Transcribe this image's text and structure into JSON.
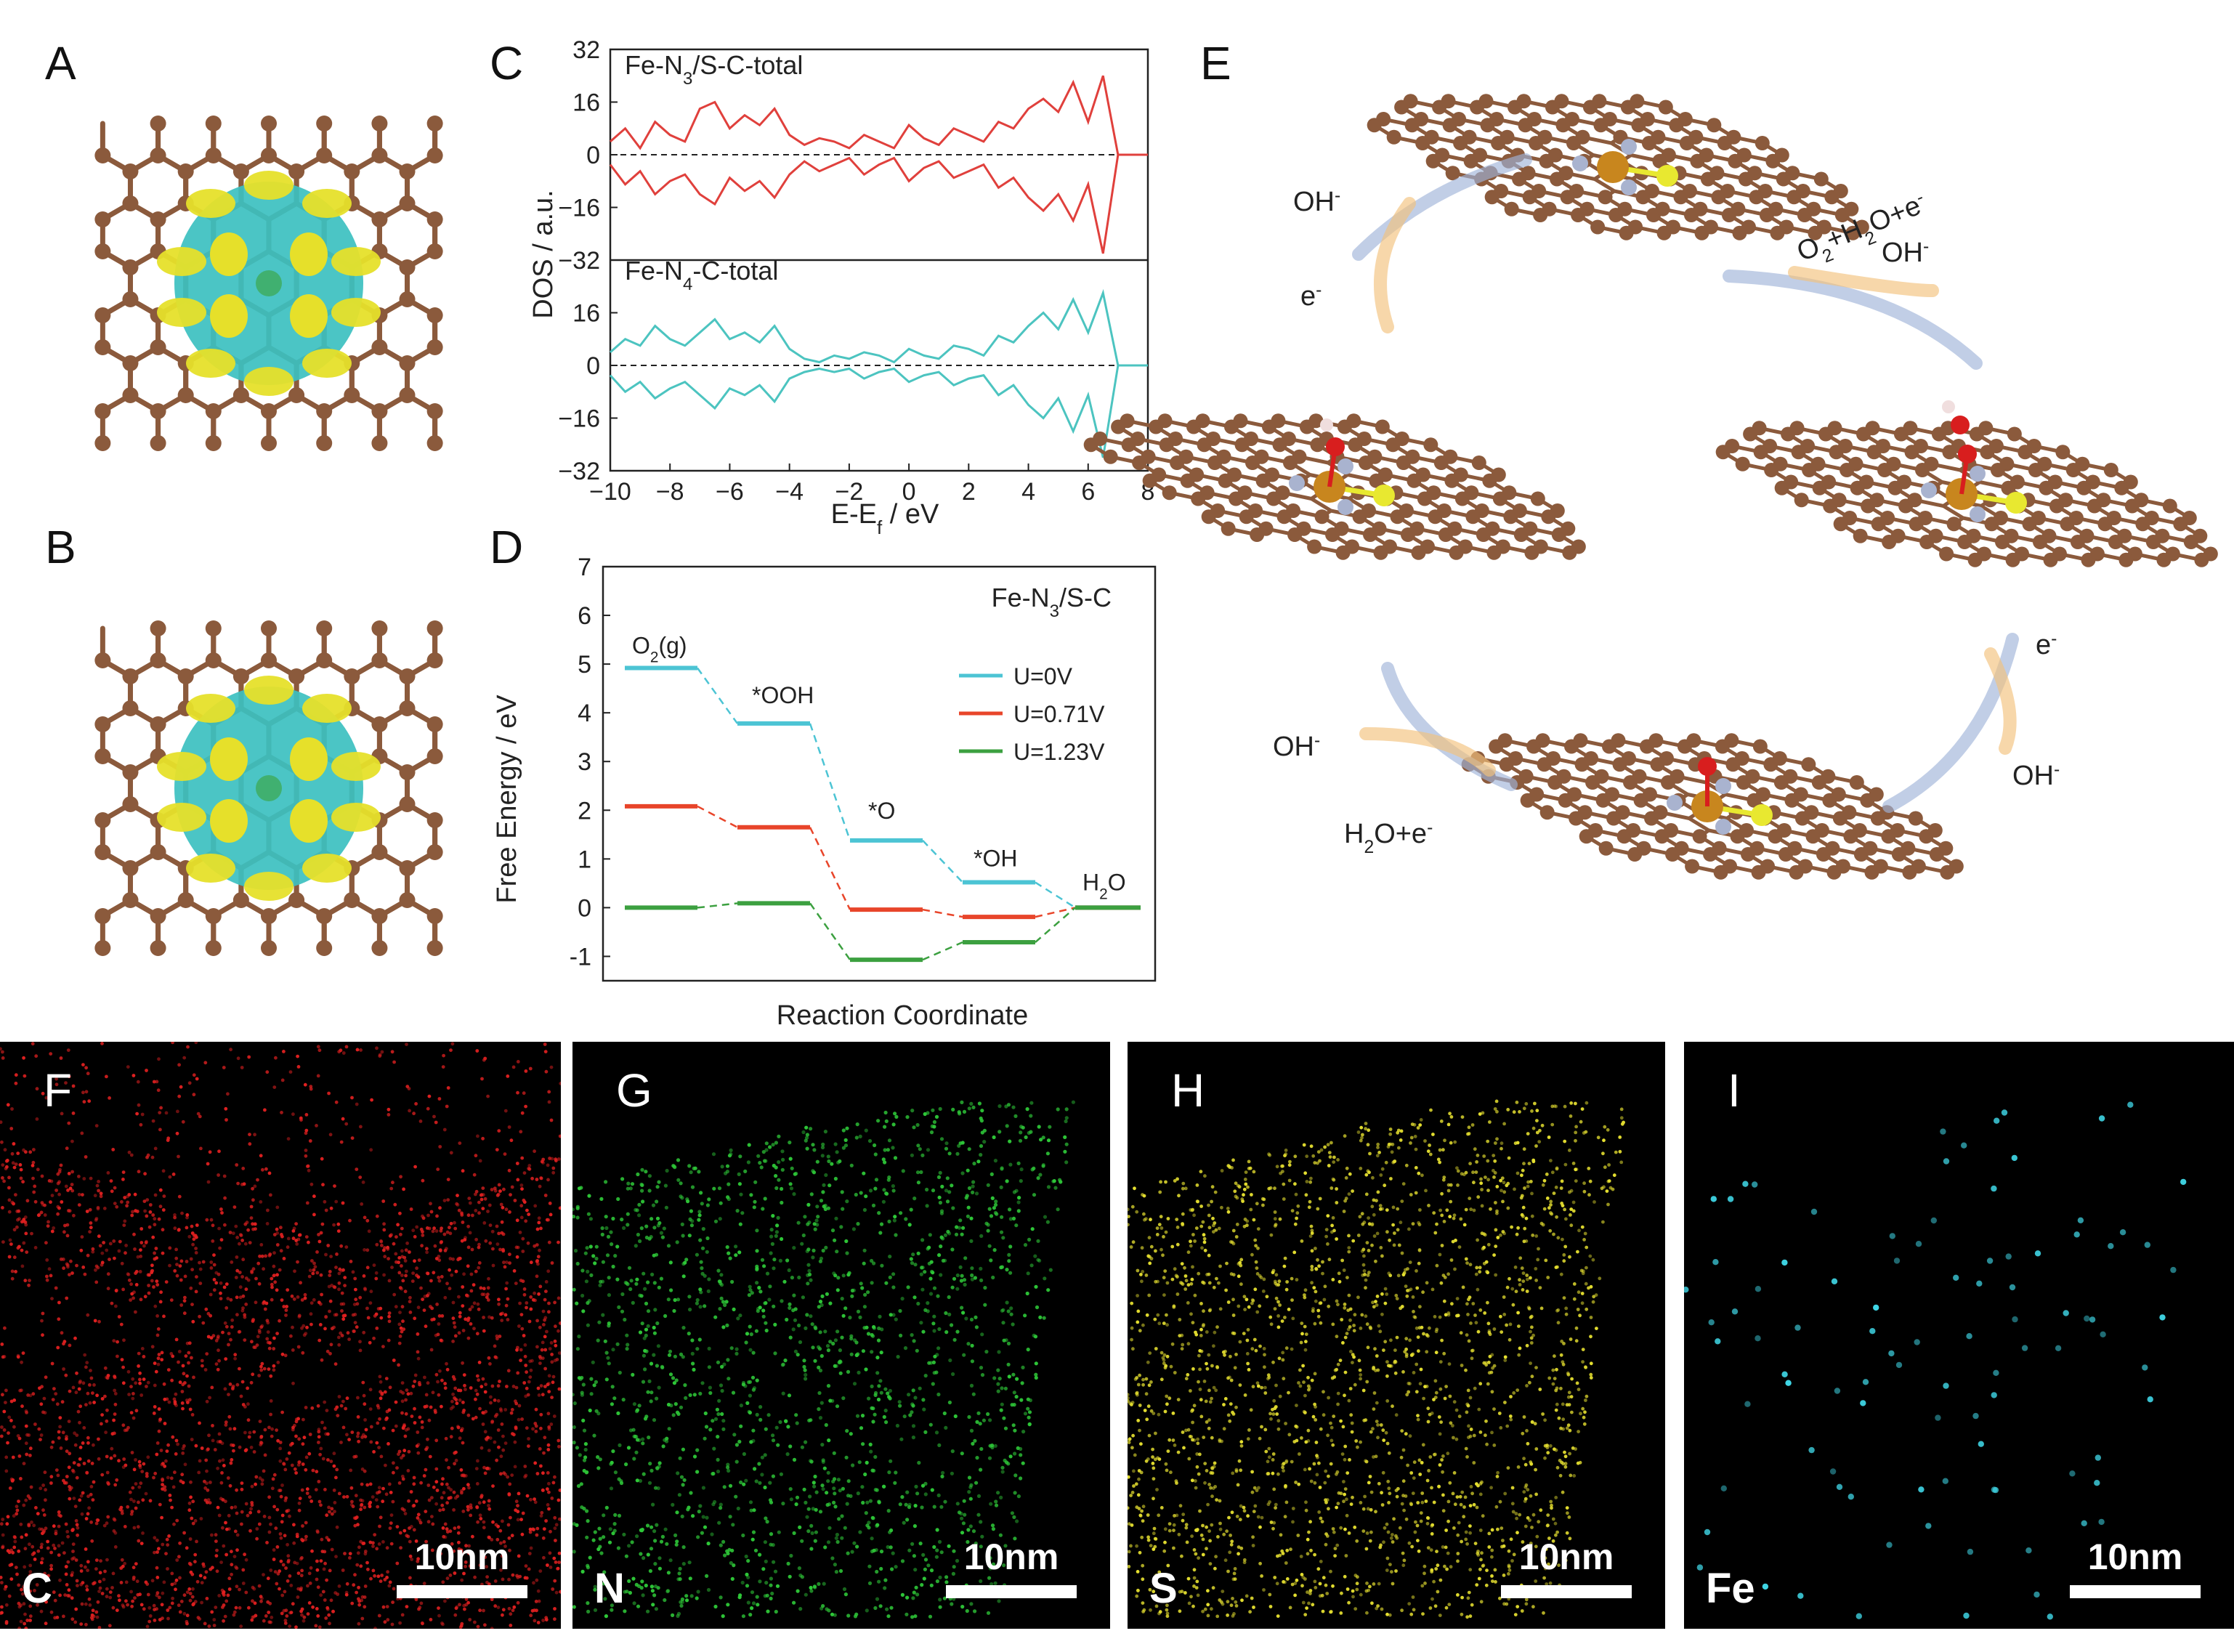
{
  "panels": {
    "A": {
      "letter": "A"
    },
    "B": {
      "letter": "B"
    },
    "C": {
      "letter": "C"
    },
    "D": {
      "letter": "D"
    },
    "E": {
      "letter": "E"
    }
  },
  "colors": {
    "carbon": "#8b5a3c",
    "nitrogen": "#a9b3cf",
    "iron": "#c8861e",
    "sulfur": "#e8e830",
    "oxygen": "#d81e1e",
    "hydrogen": "#f0dede",
    "cyan_iso": "#3cc0c0",
    "yellow_iso": "#e6e02a",
    "dos_red": "#e0403c",
    "dos_cyan": "#4cc4c0",
    "u0": "#4cc4d4",
    "u071": "#e8452a",
    "u123": "#3ca040"
  },
  "chart_data": [
    {
      "type": "line",
      "panel": "C",
      "xlabel": "E-E",
      "xlabel_sub": "f",
      "xlabel_unit": " / eV",
      "ylabel": "DOS / a.u.",
      "xlim": [
        -10,
        8
      ],
      "xticks": [
        "−10",
        "−8",
        "−6",
        "−4",
        "−2",
        "0",
        "2",
        "4",
        "6",
        "8"
      ],
      "yticks_top": [
        "32",
        "16",
        "0",
        "−16"
      ],
      "yticks_bottom": [
        "−32",
        "16",
        "0",
        "−16",
        "−32"
      ],
      "subplots": [
        {
          "label": "Fe-N",
          "sub": "3",
          "tail": "/S-C-total",
          "ylim": [
            -32,
            32
          ],
          "x": [
            -10,
            -9.5,
            -9,
            -8.5,
            -8,
            -7.5,
            -7,
            -6.5,
            -6,
            -5.5,
            -5,
            -4.5,
            -4,
            -3.5,
            -3,
            -2.5,
            -2,
            -1.5,
            -1,
            -0.5,
            0,
            0.5,
            1,
            1.5,
            2,
            2.5,
            3,
            3.5,
            4,
            4.5,
            5,
            5.5,
            6,
            6.5,
            7,
            8
          ],
          "up": [
            4,
            8,
            2,
            10,
            6,
            4,
            14,
            16,
            8,
            12,
            9,
            14,
            6,
            3,
            5,
            4,
            2,
            6,
            4,
            2,
            9,
            5,
            3,
            8,
            6,
            4,
            10,
            8,
            14,
            17,
            13,
            22,
            10,
            24,
            0,
            0
          ],
          "down": [
            -3,
            -9,
            -5,
            -12,
            -8,
            -6,
            -12,
            -15,
            -7,
            -11,
            -8,
            -13,
            -6,
            -2,
            -5,
            -3,
            -1,
            -6,
            -3,
            -1,
            -8,
            -4,
            -2,
            -7,
            -5,
            -3,
            -10,
            -7,
            -13,
            -17,
            -12,
            -20,
            -9,
            -30,
            0,
            0
          ]
        },
        {
          "label": "Fe-N",
          "sub": "4",
          "tail": "-C-total",
          "ylim": [
            -32,
            32
          ],
          "x": [
            -10,
            -9.5,
            -9,
            -8.5,
            -8,
            -7.5,
            -7,
            -6.5,
            -6,
            -5.5,
            -5,
            -4.5,
            -4,
            -3.5,
            -3,
            -2.5,
            -2,
            -1.5,
            -1,
            -0.5,
            0,
            0.5,
            1,
            1.5,
            2,
            2.5,
            3,
            3.5,
            4,
            4.5,
            5,
            5.5,
            6,
            6.5,
            7,
            8
          ],
          "up": [
            4,
            8,
            6,
            12,
            8,
            6,
            10,
            14,
            8,
            10,
            7,
            12,
            5,
            2,
            1,
            3,
            2,
            4,
            3,
            1,
            5,
            3,
            2,
            6,
            5,
            3,
            9,
            7,
            12,
            16,
            11,
            20,
            10,
            22,
            0,
            0
          ],
          "down": [
            -3,
            -8,
            -5,
            -10,
            -7,
            -5,
            -9,
            -13,
            -7,
            -9,
            -6,
            -11,
            -4,
            -2,
            -1,
            -2,
            -1,
            -4,
            -2,
            -1,
            -5,
            -3,
            -2,
            -6,
            -4,
            -3,
            -9,
            -6,
            -12,
            -16,
            -10,
            -20,
            -9,
            -28,
            0,
            0
          ]
        }
      ]
    },
    {
      "type": "line",
      "panel": "D",
      "title": "Fe-N",
      "title_sub": "3",
      "title_tail": "/S-C",
      "xlabel": "Reaction Coordinate",
      "ylabel": "Free Energy / eV",
      "ylim": [
        -1.5,
        7
      ],
      "yticks": [
        "7",
        "6",
        "5",
        "4",
        "3",
        "2",
        "1",
        "0",
        "-1"
      ],
      "steps": [
        "O2(g)",
        "*OOH",
        "*O",
        "*OH",
        "H2O"
      ],
      "step_labels": {
        "o2": "O",
        "o2_sub": "2",
        "o2_tail": "(g)",
        "ooh": "*OOH",
        "o": "*O",
        "oh": "*OH",
        "h2o": "H",
        "h2o_sub": "2",
        "h2o_tail": "O"
      },
      "series": [
        {
          "name": "U=0V",
          "values": [
            4.92,
            3.78,
            1.38,
            0.52,
            0.0
          ]
        },
        {
          "name": "U=0.71V",
          "values": [
            2.08,
            1.65,
            -0.04,
            -0.19,
            0.0
          ]
        },
        {
          "name": "U=1.23V",
          "values": [
            0.0,
            0.09,
            -1.07,
            -0.71,
            0.0
          ]
        }
      ]
    }
  ],
  "panel_e": {
    "labels": {
      "oh_top_left": "OH",
      "e_top_left": "e",
      "o2_h2o_e": "O",
      "oh_top_right": "OH",
      "e_right": "e",
      "oh_bottom_right": "OH",
      "oh_bottom_left": "OH",
      "h2o_e": "H",
      "minus": "-",
      "two": "2",
      "plus_h": "+H",
      "o_plus_e": "O+e"
    }
  },
  "maps": [
    {
      "letter": "F",
      "element": "C",
      "scale": "10nm",
      "color": "#e02020"
    },
    {
      "letter": "G",
      "element": "N",
      "scale": "10nm",
      "color": "#2ec838"
    },
    {
      "letter": "H",
      "element": "S",
      "scale": "10nm",
      "color": "#e6e030"
    },
    {
      "letter": "I",
      "element": "Fe",
      "scale": "10nm",
      "color": "#40d8e8"
    }
  ]
}
